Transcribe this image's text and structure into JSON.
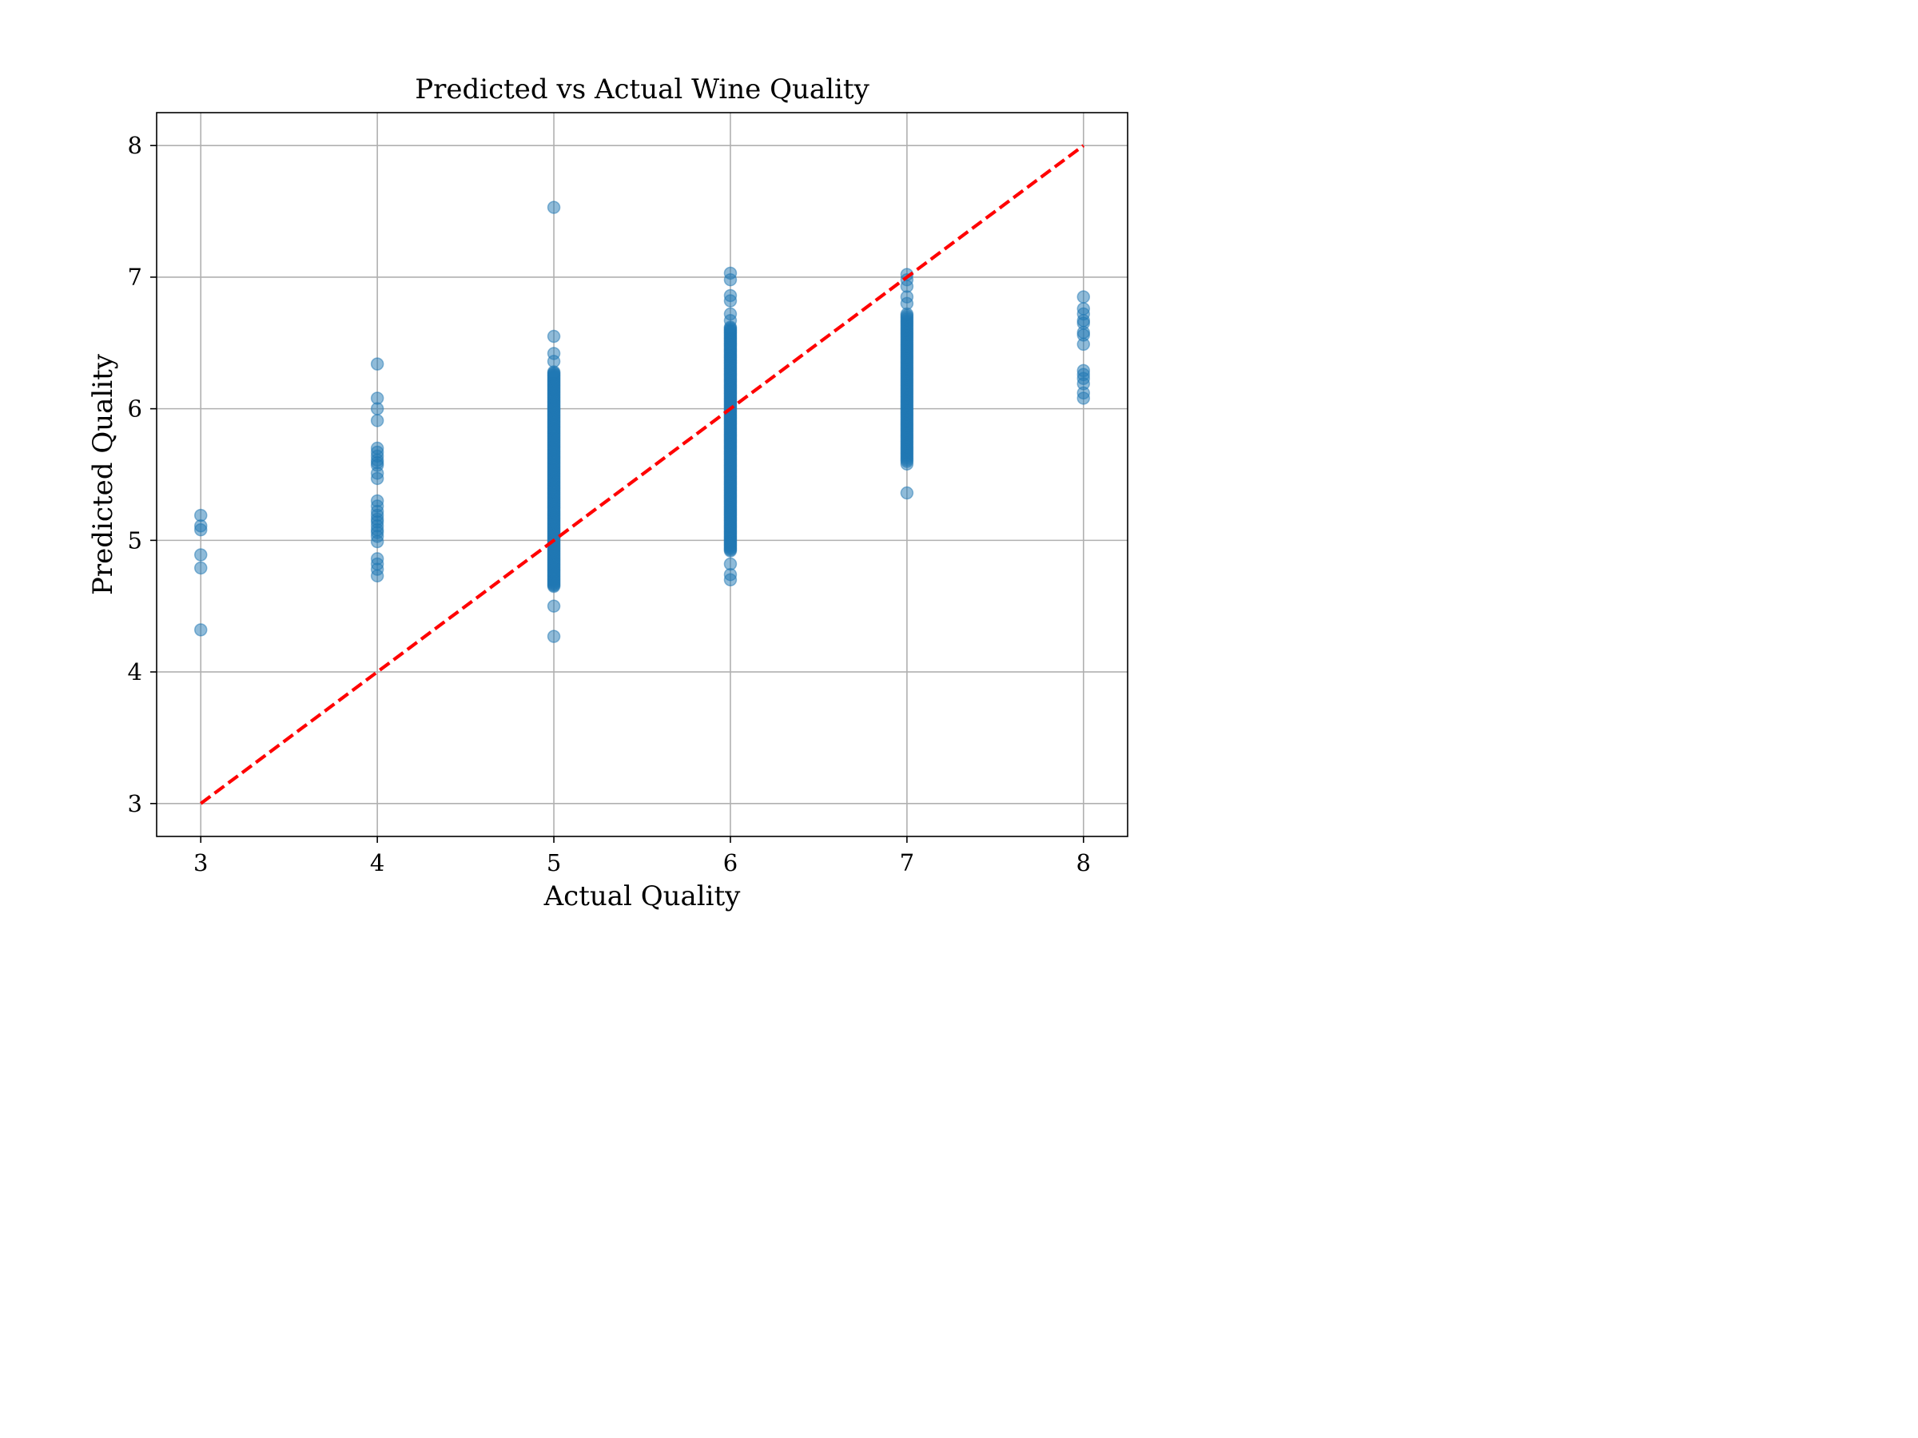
{
  "chart_data": {
    "type": "scatter",
    "title": "Predicted vs Actual Wine Quality",
    "xlabel": "Actual Quality",
    "ylabel": "Predicted Quality",
    "xlim": [
      2.75,
      8.25
    ],
    "ylim": [
      2.75,
      8.25
    ],
    "xticks": [
      "3",
      "4",
      "5",
      "6",
      "7",
      "8"
    ],
    "yticks": [
      "3",
      "4",
      "5",
      "6",
      "7",
      "8"
    ],
    "grid": true,
    "legend": "none",
    "colors": {
      "points": "#1f77b4",
      "ideal_line": "#ff0000"
    },
    "reference_line": {
      "style": "dashed",
      "from": [
        3,
        3
      ],
      "to": [
        8,
        8
      ]
    },
    "series": [
      {
        "x": 3,
        "y": [
          5.19,
          5.11,
          5.08,
          4.89,
          4.79,
          4.32
        ]
      },
      {
        "x": 4,
        "y": [
          6.34,
          6.08,
          6.0,
          5.91,
          5.7,
          5.67,
          5.64,
          5.61,
          5.59,
          5.57,
          5.51,
          5.47,
          5.3,
          5.26,
          5.22,
          5.19,
          5.16,
          5.14,
          5.11,
          5.08,
          5.06,
          5.03,
          4.99,
          4.86,
          4.82,
          4.78,
          4.73
        ]
      },
      {
        "x": 5,
        "y_range": [
          4.65,
          6.28
        ],
        "count": 220,
        "y_extra": [
          7.53,
          6.55,
          6.42,
          6.36,
          4.5,
          4.27
        ]
      },
      {
        "x": 6,
        "y_range": [
          4.92,
          6.62
        ],
        "count": 200,
        "y_extra": [
          7.03,
          6.98,
          6.86,
          6.82,
          6.72,
          6.67,
          4.82,
          4.74,
          4.7
        ]
      },
      {
        "x": 7,
        "y_range": [
          5.6,
          6.72
        ],
        "count": 90,
        "y_extra": [
          7.02,
          6.98,
          6.93,
          6.85,
          6.8,
          5.58,
          5.36
        ]
      },
      {
        "x": 8,
        "y": [
          6.85,
          6.76,
          6.72,
          6.67,
          6.65,
          6.58,
          6.56,
          6.49,
          6.29,
          6.26,
          6.23,
          6.19,
          6.12,
          6.08
        ]
      }
    ]
  }
}
